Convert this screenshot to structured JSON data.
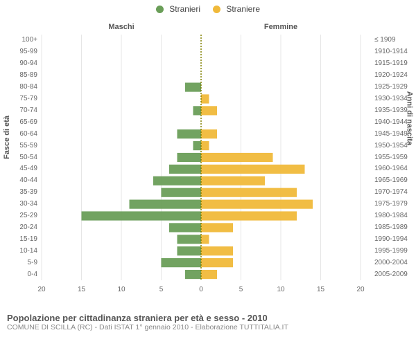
{
  "chart": {
    "type": "population-pyramid",
    "legend": {
      "male": {
        "label": "Stranieri",
        "color": "#6a9e58"
      },
      "female": {
        "label": "Straniere",
        "color": "#f0b93a"
      }
    },
    "headings": {
      "left": "Maschi",
      "right": "Femmine"
    },
    "axis_titles": {
      "left": "Fasce di età",
      "right": "Anni di nascita"
    },
    "xaxis": {
      "max": 20,
      "ticks": [
        20,
        15,
        10,
        5,
        0,
        5,
        10,
        15,
        20
      ],
      "label_fontsize": 10,
      "grid_color": "#e6e6e6",
      "zero_line_color": "#808000"
    },
    "bar_fill_opacity": 0.95,
    "bar_band_ratio": 0.78,
    "background_color": "#ffffff",
    "rows": [
      {
        "age": "100+",
        "birth": "≤ 1909",
        "male": 0,
        "female": 0
      },
      {
        "age": "95-99",
        "birth": "1910-1914",
        "male": 0,
        "female": 0
      },
      {
        "age": "90-94",
        "birth": "1915-1919",
        "male": 0,
        "female": 0
      },
      {
        "age": "85-89",
        "birth": "1920-1924",
        "male": 0,
        "female": 0
      },
      {
        "age": "80-84",
        "birth": "1925-1929",
        "male": 2,
        "female": 0
      },
      {
        "age": "75-79",
        "birth": "1930-1934",
        "male": 0,
        "female": 1
      },
      {
        "age": "70-74",
        "birth": "1935-1939",
        "male": 1,
        "female": 2
      },
      {
        "age": "65-69",
        "birth": "1940-1944",
        "male": 0,
        "female": 0
      },
      {
        "age": "60-64",
        "birth": "1945-1949",
        "male": 3,
        "female": 2
      },
      {
        "age": "55-59",
        "birth": "1950-1954",
        "male": 1,
        "female": 1
      },
      {
        "age": "50-54",
        "birth": "1955-1959",
        "male": 3,
        "female": 9
      },
      {
        "age": "45-49",
        "birth": "1960-1964",
        "male": 4,
        "female": 13
      },
      {
        "age": "40-44",
        "birth": "1965-1969",
        "male": 6,
        "female": 8
      },
      {
        "age": "35-39",
        "birth": "1970-1974",
        "male": 5,
        "female": 12
      },
      {
        "age": "30-34",
        "birth": "1975-1979",
        "male": 9,
        "female": 14
      },
      {
        "age": "25-29",
        "birth": "1980-1984",
        "male": 15,
        "female": 12
      },
      {
        "age": "20-24",
        "birth": "1985-1989",
        "male": 4,
        "female": 4
      },
      {
        "age": "15-19",
        "birth": "1990-1994",
        "male": 3,
        "female": 1
      },
      {
        "age": "10-14",
        "birth": "1995-1999",
        "male": 3,
        "female": 4
      },
      {
        "age": "5-9",
        "birth": "2000-2004",
        "male": 5,
        "female": 4
      },
      {
        "age": "0-4",
        "birth": "2005-2009",
        "male": 2,
        "female": 2
      }
    ]
  },
  "footer": {
    "title": "Popolazione per cittadinanza straniera per età e sesso - 2010",
    "subtitle": "COMUNE DI SCILLA (RC) - Dati ISTAT 1° gennaio 2010 - Elaborazione TUTTITALIA.IT"
  }
}
